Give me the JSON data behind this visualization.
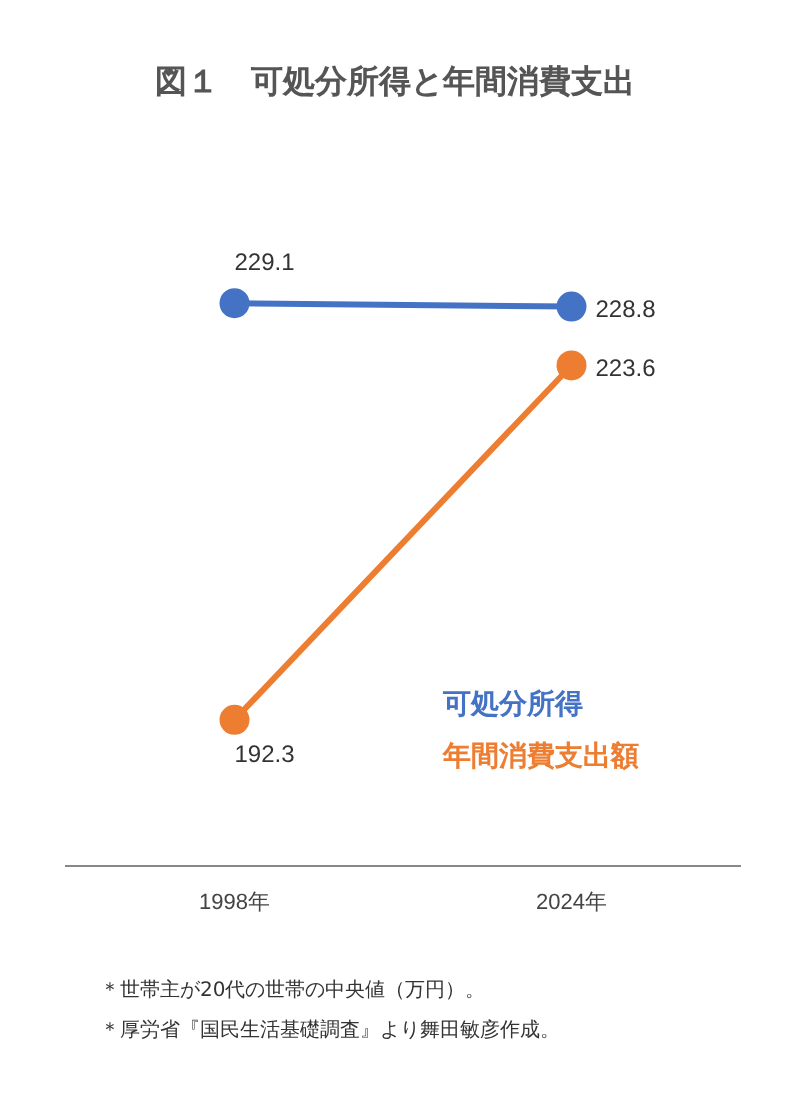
{
  "chart_data": {
    "type": "line",
    "title": "図１　可処分所得と年間消費支出",
    "categories": [
      "1998年",
      "2024年"
    ],
    "series": [
      {
        "name": "可処分所得",
        "color": "#4472c4",
        "values": [
          229.1,
          228.8
        ]
      },
      {
        "name": "年間消費支出額",
        "color": "#ed7d31",
        "values": [
          192.3,
          223.6
        ]
      }
    ],
    "data_labels": true,
    "marker": "circle",
    "grid": false,
    "legend": "bottom right",
    "annotations": [
      "＊世帯主が20代の世帯の中央値（万円）。",
      "＊厚労省『国民生活基礎調査』より舞田敏彦作成。"
    ]
  }
}
